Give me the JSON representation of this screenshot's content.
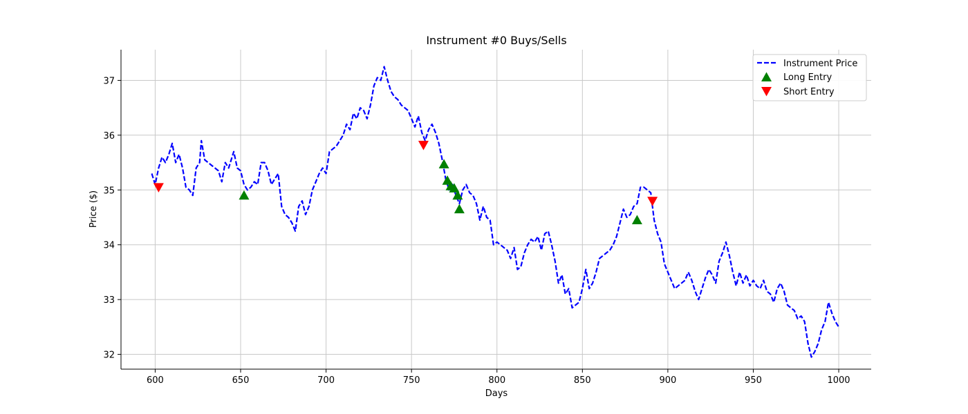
{
  "chart_data": {
    "type": "line",
    "title": "Instrument #0 Buys/Sells",
    "xlabel": "Days",
    "ylabel": "Price ($)",
    "xlim": [
      580,
      1019
    ],
    "ylim": [
      31.73,
      37.56
    ],
    "xticks": [
      600,
      650,
      700,
      750,
      800,
      850,
      900,
      950,
      1000
    ],
    "yticks": [
      32,
      33,
      34,
      35,
      36,
      37
    ],
    "grid": true,
    "legend_position": "top-right",
    "colors": {
      "price": "#0000ff",
      "long": "#008000",
      "short": "#ff0000"
    },
    "legend": [
      {
        "label": "Instrument Price",
        "marker": "dashed-line"
      },
      {
        "label": "Long Entry",
        "marker": "triangle-up"
      },
      {
        "label": "Short Entry",
        "marker": "triangle-down"
      }
    ],
    "series": [
      {
        "name": "Instrument Price",
        "style": "dashed",
        "points": [
          [
            598,
            35.3
          ],
          [
            600,
            35.1
          ],
          [
            602,
            35.4
          ],
          [
            604,
            35.6
          ],
          [
            606,
            35.5
          ],
          [
            608,
            35.65
          ],
          [
            610,
            35.85
          ],
          [
            612,
            35.5
          ],
          [
            614,
            35.65
          ],
          [
            616,
            35.4
          ],
          [
            618,
            35.05
          ],
          [
            620,
            35.0
          ],
          [
            622,
            34.9
          ],
          [
            624,
            35.4
          ],
          [
            626,
            35.5
          ],
          [
            627,
            35.9
          ],
          [
            629,
            35.55
          ],
          [
            631,
            35.5
          ],
          [
            633,
            35.45
          ],
          [
            635,
            35.4
          ],
          [
            637,
            35.35
          ],
          [
            639,
            35.15
          ],
          [
            641,
            35.5
          ],
          [
            643,
            35.4
          ],
          [
            645,
            35.6
          ],
          [
            646,
            35.7
          ],
          [
            648,
            35.4
          ],
          [
            650,
            35.35
          ],
          [
            652,
            35.1
          ],
          [
            654,
            35.0
          ],
          [
            656,
            35.05
          ],
          [
            658,
            35.15
          ],
          [
            660,
            35.1
          ],
          [
            662,
            35.5
          ],
          [
            664,
            35.5
          ],
          [
            666,
            35.35
          ],
          [
            668,
            35.1
          ],
          [
            670,
            35.2
          ],
          [
            672,
            35.3
          ],
          [
            674,
            34.7
          ],
          [
            676,
            34.55
          ],
          [
            678,
            34.5
          ],
          [
            680,
            34.4
          ],
          [
            682,
            34.25
          ],
          [
            684,
            34.7
          ],
          [
            686,
            34.8
          ],
          [
            688,
            34.55
          ],
          [
            690,
            34.7
          ],
          [
            692,
            35.0
          ],
          [
            694,
            35.15
          ],
          [
            696,
            35.3
          ],
          [
            698,
            35.4
          ],
          [
            700,
            35.3
          ],
          [
            702,
            35.7
          ],
          [
            704,
            35.75
          ],
          [
            706,
            35.8
          ],
          [
            708,
            35.9
          ],
          [
            710,
            36.0
          ],
          [
            712,
            36.2
          ],
          [
            714,
            36.1
          ],
          [
            716,
            36.4
          ],
          [
            718,
            36.3
          ],
          [
            720,
            36.5
          ],
          [
            722,
            36.45
          ],
          [
            724,
            36.3
          ],
          [
            726,
            36.55
          ],
          [
            728,
            36.9
          ],
          [
            730,
            37.05
          ],
          [
            732,
            37.0
          ],
          [
            734,
            37.25
          ],
          [
            736,
            37.0
          ],
          [
            738,
            36.8
          ],
          [
            740,
            36.7
          ],
          [
            742,
            36.65
          ],
          [
            744,
            36.55
          ],
          [
            746,
            36.5
          ],
          [
            748,
            36.45
          ],
          [
            750,
            36.3
          ],
          [
            752,
            36.15
          ],
          [
            754,
            36.35
          ],
          [
            756,
            36.05
          ],
          [
            758,
            35.9
          ],
          [
            760,
            36.1
          ],
          [
            762,
            36.2
          ],
          [
            764,
            36.05
          ],
          [
            766,
            35.85
          ],
          [
            768,
            35.55
          ],
          [
            770,
            35.2
          ],
          [
            772,
            35.0
          ],
          [
            774,
            35.1
          ],
          [
            776,
            34.9
          ],
          [
            778,
            34.75
          ],
          [
            780,
            35.0
          ],
          [
            782,
            35.1
          ],
          [
            784,
            34.95
          ],
          [
            786,
            34.9
          ],
          [
            788,
            34.75
          ],
          [
            790,
            34.45
          ],
          [
            792,
            34.7
          ],
          [
            794,
            34.5
          ],
          [
            796,
            34.45
          ],
          [
            798,
            34.0
          ],
          [
            800,
            34.05
          ],
          [
            802,
            34.0
          ],
          [
            804,
            33.95
          ],
          [
            806,
            33.9
          ],
          [
            808,
            33.75
          ],
          [
            810,
            33.95
          ],
          [
            812,
            33.55
          ],
          [
            814,
            33.6
          ],
          [
            816,
            33.85
          ],
          [
            818,
            34.0
          ],
          [
            820,
            34.1
          ],
          [
            822,
            34.05
          ],
          [
            824,
            34.15
          ],
          [
            826,
            33.9
          ],
          [
            828,
            34.2
          ],
          [
            830,
            34.25
          ],
          [
            832,
            34.0
          ],
          [
            834,
            33.7
          ],
          [
            836,
            33.3
          ],
          [
            838,
            33.45
          ],
          [
            840,
            33.1
          ],
          [
            842,
            33.2
          ],
          [
            844,
            32.85
          ],
          [
            846,
            32.9
          ],
          [
            848,
            32.95
          ],
          [
            850,
            33.2
          ],
          [
            852,
            33.55
          ],
          [
            854,
            33.2
          ],
          [
            856,
            33.3
          ],
          [
            858,
            33.5
          ],
          [
            860,
            33.75
          ],
          [
            862,
            33.8
          ],
          [
            864,
            33.85
          ],
          [
            866,
            33.9
          ],
          [
            868,
            34.0
          ],
          [
            870,
            34.15
          ],
          [
            872,
            34.4
          ],
          [
            874,
            34.65
          ],
          [
            876,
            34.5
          ],
          [
            878,
            34.55
          ],
          [
            880,
            34.7
          ],
          [
            882,
            34.75
          ],
          [
            884,
            35.05
          ],
          [
            886,
            35.05
          ],
          [
            888,
            35.0
          ],
          [
            890,
            34.95
          ],
          [
            892,
            34.45
          ],
          [
            894,
            34.2
          ],
          [
            896,
            34.05
          ],
          [
            898,
            33.65
          ],
          [
            900,
            33.5
          ],
          [
            902,
            33.35
          ],
          [
            904,
            33.2
          ],
          [
            906,
            33.25
          ],
          [
            908,
            33.3
          ],
          [
            910,
            33.35
          ],
          [
            912,
            33.5
          ],
          [
            914,
            33.35
          ],
          [
            916,
            33.15
          ],
          [
            918,
            33.0
          ],
          [
            920,
            33.2
          ],
          [
            922,
            33.4
          ],
          [
            924,
            33.55
          ],
          [
            926,
            33.45
          ],
          [
            928,
            33.3
          ],
          [
            930,
            33.7
          ],
          [
            932,
            33.85
          ],
          [
            934,
            34.05
          ],
          [
            936,
            33.8
          ],
          [
            938,
            33.5
          ],
          [
            940,
            33.25
          ],
          [
            942,
            33.5
          ],
          [
            944,
            33.3
          ],
          [
            946,
            33.45
          ],
          [
            948,
            33.25
          ],
          [
            950,
            33.35
          ],
          [
            952,
            33.25
          ],
          [
            954,
            33.2
          ],
          [
            956,
            33.35
          ],
          [
            958,
            33.15
          ],
          [
            960,
            33.1
          ],
          [
            962,
            32.95
          ],
          [
            964,
            33.2
          ],
          [
            966,
            33.3
          ],
          [
            968,
            33.15
          ],
          [
            970,
            32.9
          ],
          [
            972,
            32.85
          ],
          [
            974,
            32.8
          ],
          [
            976,
            32.65
          ],
          [
            978,
            32.7
          ],
          [
            980,
            32.6
          ],
          [
            982,
            32.2
          ],
          [
            984,
            31.95
          ],
          [
            986,
            32.05
          ],
          [
            988,
            32.2
          ],
          [
            990,
            32.45
          ],
          [
            992,
            32.6
          ],
          [
            994,
            32.95
          ],
          [
            996,
            32.75
          ],
          [
            998,
            32.6
          ],
          [
            1000,
            32.5
          ]
        ]
      },
      {
        "name": "Long Entry",
        "marker": "triangle-up",
        "points": [
          [
            652,
            34.9
          ],
          [
            769,
            35.47
          ],
          [
            771,
            35.17
          ],
          [
            773,
            35.07
          ],
          [
            775,
            35.03
          ],
          [
            777,
            34.9
          ],
          [
            778,
            34.65
          ],
          [
            882,
            34.45
          ]
        ]
      },
      {
        "name": "Short Entry",
        "marker": "triangle-down",
        "points": [
          [
            602,
            35.05
          ],
          [
            757,
            35.82
          ],
          [
            891,
            34.8
          ]
        ]
      }
    ]
  }
}
